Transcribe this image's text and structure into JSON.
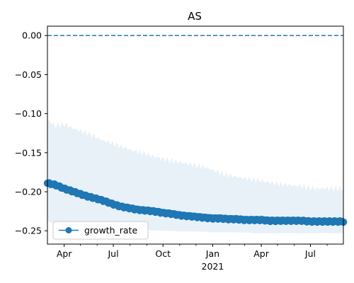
{
  "chart_data": {
    "type": "line",
    "title": "AS",
    "xlabel": "",
    "ylabel": "",
    "x_start": "2020-03-01",
    "x_end": "2021-08-31",
    "x_ticks": [
      {
        "date": "2020-04-01",
        "label": "Apr",
        "sublabel": ""
      },
      {
        "date": "2020-07-01",
        "label": "Jul",
        "sublabel": ""
      },
      {
        "date": "2020-10-01",
        "label": "Oct",
        "sublabel": ""
      },
      {
        "date": "2021-01-01",
        "label": "Jan",
        "sublabel": "2021"
      },
      {
        "date": "2021-04-01",
        "label": "Apr",
        "sublabel": ""
      },
      {
        "date": "2021-07-01",
        "label": "Jul",
        "sublabel": ""
      }
    ],
    "minor_tick_dates": [
      "2020-05-01",
      "2020-06-01",
      "2020-08-01",
      "2020-09-01",
      "2020-11-01",
      "2020-12-01",
      "2021-02-01",
      "2021-03-01",
      "2021-05-01",
      "2021-06-01",
      "2021-08-01"
    ],
    "ylim": [
      -0.267,
      0.012
    ],
    "y_ticks": [
      0.0,
      -0.05,
      -0.1,
      -0.15,
      -0.2,
      -0.25
    ],
    "y_tick_labels": [
      "0.00",
      "−0.05",
      "−0.10",
      "−0.15",
      "−0.20",
      "−0.25"
    ],
    "reference_line": {
      "y": 0.0,
      "style": "dashed",
      "color": "#1f77b4"
    },
    "series": [
      {
        "name": "growth_rate",
        "color": "#1f77b4",
        "marker": "circle",
        "points": [
          [
            "2020-03-01",
            -0.189
          ],
          [
            "2020-03-15",
            -0.191
          ],
          [
            "2020-04-01",
            -0.196
          ],
          [
            "2020-04-15",
            -0.199
          ],
          [
            "2020-05-01",
            -0.203
          ],
          [
            "2020-05-15",
            -0.206
          ],
          [
            "2020-06-01",
            -0.209
          ],
          [
            "2020-06-15",
            -0.212
          ],
          [
            "2020-07-01",
            -0.216
          ],
          [
            "2020-07-15",
            -0.219
          ],
          [
            "2020-08-01",
            -0.221
          ],
          [
            "2020-08-15",
            -0.223
          ],
          [
            "2020-09-01",
            -0.224
          ],
          [
            "2020-09-15",
            -0.225
          ],
          [
            "2020-10-01",
            -0.227
          ],
          [
            "2020-10-15",
            -0.228
          ],
          [
            "2020-11-01",
            -0.23
          ],
          [
            "2020-11-15",
            -0.231
          ],
          [
            "2020-12-01",
            -0.232
          ],
          [
            "2020-12-15",
            -0.233
          ],
          [
            "2021-01-01",
            -0.234
          ],
          [
            "2021-01-15",
            -0.234
          ],
          [
            "2021-02-01",
            -0.235
          ],
          [
            "2021-02-15",
            -0.235
          ],
          [
            "2021-03-01",
            -0.236
          ],
          [
            "2021-03-15",
            -0.236
          ],
          [
            "2021-04-01",
            -0.236
          ],
          [
            "2021-04-15",
            -0.237
          ],
          [
            "2021-05-01",
            -0.237
          ],
          [
            "2021-05-15",
            -0.237
          ],
          [
            "2021-06-01",
            -0.237
          ],
          [
            "2021-06-15",
            -0.237
          ],
          [
            "2021-07-01",
            -0.238
          ],
          [
            "2021-07-15",
            -0.238
          ],
          [
            "2021-08-01",
            -0.238
          ],
          [
            "2021-08-15",
            -0.238
          ],
          [
            "2021-08-31",
            -0.238
          ]
        ]
      }
    ],
    "band": {
      "color": "#1f77b4",
      "opacity": 0.1,
      "upper": [
        [
          "2020-03-01",
          -0.107
        ],
        [
          "2020-03-15",
          -0.116
        ],
        [
          "2020-04-01",
          -0.113
        ],
        [
          "2020-04-15",
          -0.118
        ],
        [
          "2020-05-01",
          -0.122
        ],
        [
          "2020-05-15",
          -0.125
        ],
        [
          "2020-06-01",
          -0.131
        ],
        [
          "2020-06-15",
          -0.135
        ],
        [
          "2020-07-01",
          -0.138
        ],
        [
          "2020-07-15",
          -0.142
        ],
        [
          "2020-08-01",
          -0.146
        ],
        [
          "2020-08-15",
          -0.149
        ],
        [
          "2020-09-01",
          -0.152
        ],
        [
          "2020-09-15",
          -0.155
        ],
        [
          "2020-10-01",
          -0.158
        ],
        [
          "2020-10-15",
          -0.16
        ],
        [
          "2020-11-01",
          -0.162
        ],
        [
          "2020-11-15",
          -0.164
        ],
        [
          "2020-12-01",
          -0.166
        ],
        [
          "2020-12-15",
          -0.168
        ],
        [
          "2021-01-01",
          -0.172
        ],
        [
          "2021-01-15",
          -0.176
        ],
        [
          "2021-02-01",
          -0.179
        ],
        [
          "2021-02-15",
          -0.181
        ],
        [
          "2021-03-01",
          -0.183
        ],
        [
          "2021-03-15",
          -0.184
        ],
        [
          "2021-04-01",
          -0.186
        ],
        [
          "2021-04-15",
          -0.188
        ],
        [
          "2021-05-01",
          -0.19
        ],
        [
          "2021-05-15",
          -0.191
        ],
        [
          "2021-06-01",
          -0.192
        ],
        [
          "2021-06-15",
          -0.193
        ],
        [
          "2021-07-01",
          -0.195
        ],
        [
          "2021-07-15",
          -0.196
        ],
        [
          "2021-08-01",
          -0.196
        ],
        [
          "2021-08-15",
          -0.196
        ],
        [
          "2021-08-31",
          -0.196
        ]
      ],
      "lower": [
        [
          "2020-03-01",
          -0.238
        ],
        [
          "2020-03-15",
          -0.241
        ],
        [
          "2020-04-01",
          -0.243
        ],
        [
          "2020-04-15",
          -0.244
        ],
        [
          "2020-05-01",
          -0.245
        ],
        [
          "2020-05-15",
          -0.246
        ],
        [
          "2020-06-01",
          -0.247
        ],
        [
          "2020-06-15",
          -0.247
        ],
        [
          "2020-07-01",
          -0.248
        ],
        [
          "2020-07-15",
          -0.248
        ],
        [
          "2020-08-01",
          -0.249
        ],
        [
          "2020-08-15",
          -0.249
        ],
        [
          "2020-09-01",
          -0.249
        ],
        [
          "2020-09-15",
          -0.25
        ],
        [
          "2020-10-01",
          -0.25
        ],
        [
          "2020-10-15",
          -0.25
        ],
        [
          "2020-11-01",
          -0.251
        ],
        [
          "2020-11-15",
          -0.251
        ],
        [
          "2020-12-01",
          -0.251
        ],
        [
          "2020-12-15",
          -0.251
        ],
        [
          "2021-01-01",
          -0.252
        ],
        [
          "2021-01-15",
          -0.252
        ],
        [
          "2021-02-01",
          -0.252
        ],
        [
          "2021-02-15",
          -0.252
        ],
        [
          "2021-03-01",
          -0.252
        ],
        [
          "2021-03-15",
          -0.253
        ],
        [
          "2021-04-01",
          -0.253
        ],
        [
          "2021-04-15",
          -0.253
        ],
        [
          "2021-05-01",
          -0.253
        ],
        [
          "2021-05-15",
          -0.253
        ],
        [
          "2021-06-01",
          -0.253
        ],
        [
          "2021-06-15",
          -0.253
        ],
        [
          "2021-07-01",
          -0.253
        ],
        [
          "2021-07-15",
          -0.253
        ],
        [
          "2021-08-01",
          -0.253
        ],
        [
          "2021-08-15",
          -0.253
        ],
        [
          "2021-08-31",
          -0.253
        ]
      ]
    },
    "legend": {
      "position": "lower-left",
      "entries": [
        "growth_rate"
      ]
    },
    "grid": false
  }
}
